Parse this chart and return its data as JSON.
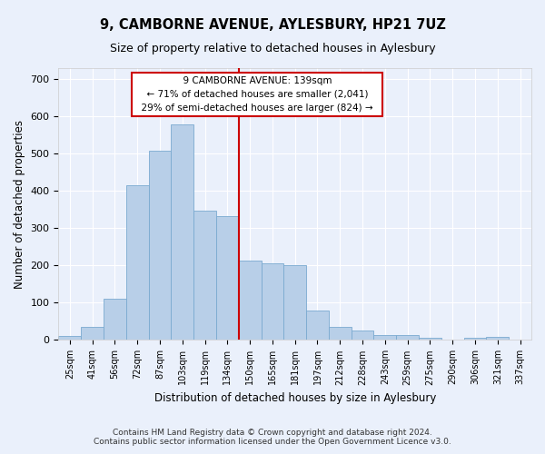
{
  "title": "9, CAMBORNE AVENUE, AYLESBURY, HP21 7UZ",
  "subtitle": "Size of property relative to detached houses in Aylesbury",
  "xlabel": "Distribution of detached houses by size in Aylesbury",
  "ylabel": "Number of detached properties",
  "categories": [
    "25sqm",
    "41sqm",
    "56sqm",
    "72sqm",
    "87sqm",
    "103sqm",
    "119sqm",
    "134sqm",
    "150sqm",
    "165sqm",
    "181sqm",
    "197sqm",
    "212sqm",
    "228sqm",
    "243sqm",
    "259sqm",
    "275sqm",
    "290sqm",
    "306sqm",
    "321sqm",
    "337sqm"
  ],
  "bar_heights": [
    10,
    35,
    112,
    415,
    507,
    580,
    348,
    333,
    212,
    205,
    200,
    78,
    35,
    25,
    13,
    13,
    5,
    0,
    5,
    8,
    0
  ],
  "bar_color": "#b8cfe8",
  "bar_edge_color": "#7aaad0",
  "vline_x": 7.5,
  "vline_color": "#cc0000",
  "ylim": [
    0,
    730
  ],
  "yticks": [
    0,
    100,
    200,
    300,
    400,
    500,
    600,
    700
  ],
  "annotation_title": "9 CAMBORNE AVENUE: 139sqm",
  "annotation_line1": "← 71% of detached houses are smaller (2,041)",
  "annotation_line2": "29% of semi-detached houses are larger (824) →",
  "annotation_box_color": "#cc0000",
  "footer_line1": "Contains HM Land Registry data © Crown copyright and database right 2024.",
  "footer_line2": "Contains public sector information licensed under the Open Government Licence v3.0.",
  "bg_color": "#eaf0fb",
  "fig_bg_color": "#eaf0fb",
  "grid_color": "#ffffff",
  "title_fontsize": 10.5,
  "subtitle_fontsize": 9,
  "axis_label_fontsize": 8.5,
  "tick_fontsize": 7,
  "annotation_fontsize": 7.5,
  "footer_fontsize": 6.5
}
